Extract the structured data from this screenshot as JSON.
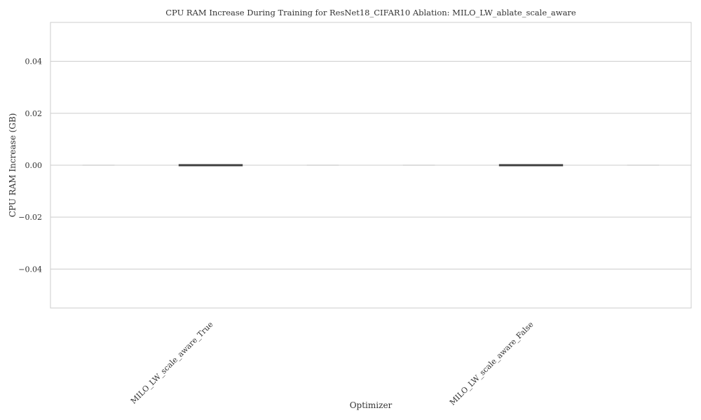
{
  "chart_data": {
    "type": "box",
    "title": "CPU RAM Increase During Training for ResNet18_CIFAR10 Ablation: MILO_LW_ablate_scale_aware",
    "xlabel": "Optimizer",
    "ylabel": "CPU RAM Increase (GB)",
    "categories": [
      "MILO_LW_scale_aware_True",
      "MILO_LW_scale_aware_False"
    ],
    "ylim": [
      -0.055,
      0.055
    ],
    "yticks": [
      0.04,
      0.02,
      0.0,
      -0.02,
      -0.04
    ],
    "ytick_labels": [
      "0.04",
      "0.02",
      "0.00",
      "−0.02",
      "−0.04"
    ],
    "boxes": [
      {
        "category": "MILO_LW_scale_aware_True",
        "min": 0.0,
        "q1": 0.0,
        "median": 0.0,
        "q3": 0.0,
        "max": 0.0
      },
      {
        "category": "MILO_LW_scale_aware_False",
        "min": 0.0,
        "q1": 0.0,
        "median": 0.0,
        "q3": 0.0,
        "max": 0.0
      }
    ],
    "grid": true,
    "colors": {
      "grid": "#cccccc",
      "axes": "#cccccc",
      "median": "#3f3f3f",
      "text": "#333333"
    }
  }
}
